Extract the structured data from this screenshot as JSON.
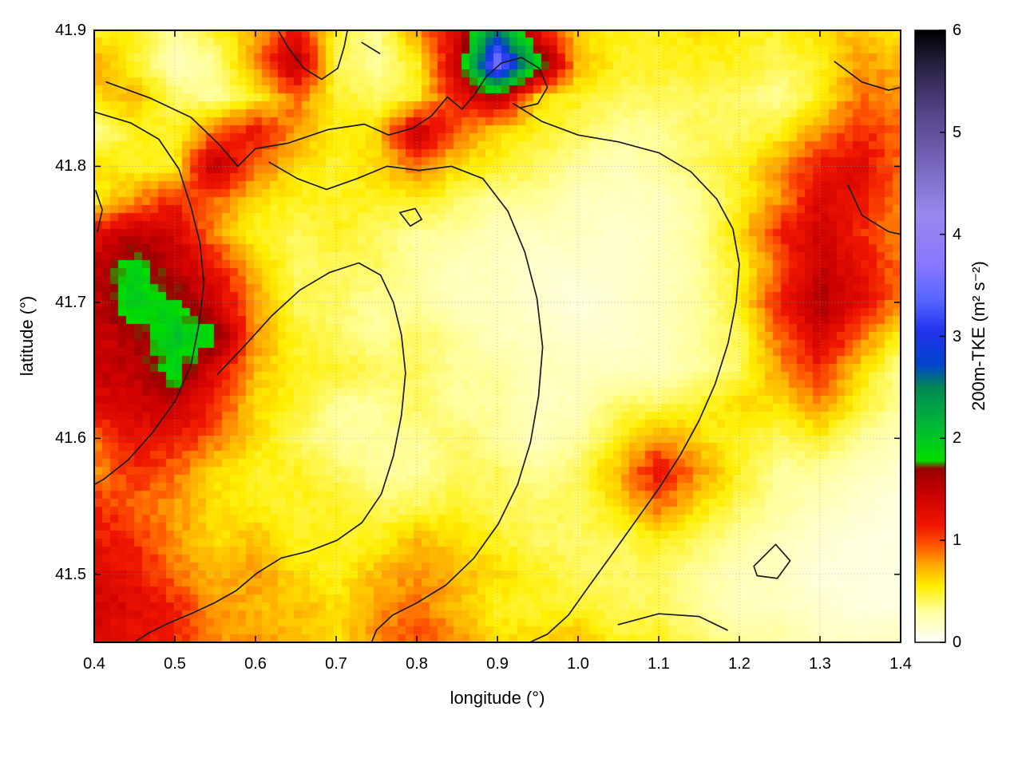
{
  "figure": {
    "background": "#ffffff"
  },
  "chart_data": {
    "type": "heatmap",
    "xlabel": "longitude (°)",
    "ylabel": "latitude (°)",
    "xlim": [
      0.4,
      1.4
    ],
    "ylim": [
      41.45,
      41.9
    ],
    "grid": true,
    "x_ticks": {
      "values": [
        0.4,
        0.5,
        0.6,
        0.7,
        0.8,
        0.9,
        1.0,
        1.1,
        1.2,
        1.3,
        1.4
      ],
      "labels": [
        "0.4",
        "0.5",
        "0.6",
        "0.7",
        "0.8",
        "0.9",
        "1.0",
        "1.1",
        "1.2",
        "1.3",
        "1.4"
      ]
    },
    "y_ticks": {
      "values": [
        41.5,
        41.6,
        41.7,
        41.8,
        41.9
      ],
      "labels": [
        "41.5",
        "41.6",
        "41.7",
        "41.8",
        "41.9"
      ]
    },
    "heatmap": {
      "lon_min": 0.4,
      "lon_max": 1.4,
      "lat_min": 41.45,
      "lat_max": 41.9,
      "ncols": 21,
      "nrows": 19,
      "row_order": "top-to-bottom",
      "col_order": "left-to-right",
      "values": [
        [
          0.5,
          0.5,
          0.3,
          0.5,
          0.7,
          1.2,
          0.5,
          0.3,
          0.8,
          1.3,
          2.5,
          1.2,
          0.6,
          0.5,
          0.5,
          0.6,
          0.5,
          0.5,
          0.6,
          0.7,
          0.5
        ],
        [
          0.8,
          0.5,
          0.2,
          0.3,
          0.8,
          1.6,
          0.4,
          0.3,
          0.5,
          1.4,
          3.6,
          2.0,
          0.7,
          0.5,
          0.5,
          0.5,
          0.5,
          0.4,
          0.5,
          0.8,
          0.7
        ],
        [
          0.6,
          0.7,
          0.4,
          0.3,
          0.5,
          0.9,
          0.5,
          0.4,
          0.5,
          1.2,
          1.5,
          0.6,
          0.5,
          0.4,
          0.4,
          0.4,
          0.4,
          0.3,
          0.5,
          0.9,
          0.8
        ],
        [
          0.3,
          0.5,
          0.5,
          0.9,
          1.2,
          0.8,
          0.5,
          0.6,
          1.5,
          0.9,
          0.6,
          0.5,
          0.4,
          0.3,
          0.3,
          0.4,
          0.4,
          0.5,
          0.8,
          1.1,
          0.9
        ],
        [
          0.6,
          0.5,
          0.5,
          1.6,
          0.9,
          0.6,
          0.5,
          0.6,
          0.9,
          0.6,
          0.5,
          0.4,
          0.3,
          0.2,
          0.3,
          0.4,
          0.5,
          0.8,
          1.2,
          1.3,
          0.9
        ],
        [
          0.5,
          0.8,
          1.1,
          0.9,
          0.6,
          0.5,
          0.5,
          0.5,
          0.5,
          0.4,
          0.3,
          0.3,
          0.2,
          0.2,
          0.2,
          0.3,
          0.5,
          0.8,
          1.3,
          1.2,
          0.8
        ],
        [
          1.3,
          1.5,
          1.4,
          0.8,
          0.5,
          0.4,
          0.5,
          0.4,
          0.3,
          0.3,
          0.2,
          0.2,
          0.2,
          0.15,
          0.2,
          0.3,
          0.6,
          1.1,
          1.4,
          1.1,
          0.8
        ],
        [
          1.5,
          1.9,
          1.5,
          1.2,
          0.7,
          0.4,
          0.4,
          0.4,
          0.3,
          0.2,
          0.2,
          0.15,
          0.15,
          0.15,
          0.2,
          0.3,
          0.5,
          0.9,
          1.5,
          1.2,
          0.9
        ],
        [
          1.5,
          2.0,
          1.8,
          1.4,
          0.8,
          0.4,
          0.4,
          0.3,
          0.3,
          0.2,
          0.2,
          0.15,
          0.1,
          0.15,
          0.2,
          0.3,
          0.5,
          1.1,
          1.6,
          1.3,
          0.8
        ],
        [
          1.4,
          1.6,
          2.0,
          1.8,
          0.8,
          0.5,
          0.4,
          0.3,
          0.4,
          0.3,
          0.2,
          0.2,
          0.15,
          0.15,
          0.2,
          0.3,
          0.4,
          0.9,
          1.4,
          0.9,
          0.5
        ],
        [
          1.5,
          1.5,
          1.9,
          1.3,
          0.7,
          0.5,
          0.5,
          0.4,
          0.4,
          0.3,
          0.3,
          0.2,
          0.2,
          0.2,
          0.2,
          0.3,
          0.4,
          0.8,
          1.1,
          0.6,
          0.3
        ],
        [
          1.3,
          1.4,
          1.5,
          1.1,
          0.6,
          0.5,
          0.3,
          0.3,
          0.4,
          0.3,
          0.3,
          0.2,
          0.2,
          0.4,
          0.4,
          0.5,
          0.6,
          0.6,
          0.8,
          0.5,
          0.3
        ],
        [
          0.9,
          1.2,
          1.2,
          0.9,
          0.6,
          0.4,
          0.3,
          0.3,
          0.3,
          0.4,
          0.3,
          0.2,
          0.3,
          0.5,
          0.8,
          0.6,
          0.5,
          0.4,
          0.5,
          0.3,
          0.2
        ],
        [
          0.8,
          1.1,
          0.9,
          0.6,
          0.5,
          0.5,
          0.4,
          0.3,
          0.3,
          0.4,
          0.4,
          0.3,
          0.4,
          0.7,
          1.2,
          0.8,
          0.5,
          0.3,
          0.3,
          0.2,
          0.15
        ],
        [
          1.1,
          0.9,
          0.8,
          0.6,
          0.5,
          0.5,
          0.5,
          0.4,
          0.4,
          0.5,
          0.4,
          0.4,
          0.4,
          0.6,
          0.9,
          0.6,
          0.4,
          0.3,
          0.2,
          0.15,
          0.1
        ],
        [
          1.2,
          1.1,
          0.8,
          0.6,
          0.7,
          0.5,
          0.5,
          0.5,
          0.7,
          0.6,
          0.5,
          0.4,
          0.4,
          0.4,
          0.5,
          0.4,
          0.3,
          0.2,
          0.15,
          0.1,
          0.1
        ],
        [
          1.3,
          1.2,
          0.9,
          0.7,
          0.8,
          0.6,
          0.5,
          0.7,
          0.8,
          0.7,
          0.6,
          0.5,
          0.4,
          0.4,
          0.4,
          0.3,
          0.2,
          0.2,
          0.1,
          0.1,
          0.1
        ],
        [
          1.4,
          1.3,
          1.1,
          0.8,
          0.7,
          0.7,
          0.6,
          0.8,
          0.9,
          0.7,
          0.5,
          0.5,
          0.5,
          0.4,
          0.4,
          0.3,
          0.2,
          0.2,
          0.15,
          0.1,
          0.1
        ],
        [
          1.3,
          1.2,
          1.1,
          0.8,
          0.8,
          0.7,
          0.6,
          0.8,
          1.0,
          0.8,
          0.6,
          0.6,
          0.7,
          0.5,
          0.5,
          0.4,
          0.3,
          0.3,
          0.2,
          0.2,
          0.2
        ]
      ]
    },
    "palette": {
      "stops": [
        [
          0.0,
          "#ffffff"
        ],
        [
          0.3,
          "#ffff9e"
        ],
        [
          0.55,
          "#ffee00"
        ],
        [
          0.75,
          "#ffaa00"
        ],
        [
          0.95,
          "#ff5500"
        ],
        [
          1.15,
          "#ee1500"
        ],
        [
          1.45,
          "#cc0000"
        ],
        [
          1.7,
          "#990000"
        ],
        [
          1.78,
          "#00dd00"
        ],
        [
          2.1,
          "#00bb33"
        ],
        [
          2.5,
          "#008855"
        ],
        [
          2.72,
          "#0044cc"
        ],
        [
          3.05,
          "#2233ee"
        ],
        [
          3.35,
          "#5566ff"
        ],
        [
          3.7,
          "#8877ff"
        ],
        [
          4.2,
          "#9988ee"
        ],
        [
          4.7,
          "#7766bb"
        ],
        [
          5.2,
          "#554488"
        ],
        [
          5.65,
          "#2a2244"
        ],
        [
          6.0,
          "#000000"
        ]
      ]
    },
    "contours": {
      "color": "#1c1c1c",
      "paths": [
        [
          [
            0.415,
            41.862
          ],
          [
            0.47,
            41.85
          ],
          [
            0.52,
            41.836
          ],
          [
            0.555,
            41.816
          ],
          [
            0.578,
            41.8
          ],
          [
            0.6,
            41.813
          ],
          [
            0.64,
            41.817
          ],
          [
            0.69,
            41.827
          ],
          [
            0.735,
            41.831
          ],
          [
            0.765,
            41.823
          ],
          [
            0.795,
            41.828
          ],
          [
            0.818,
            41.837
          ],
          [
            0.838,
            41.851
          ],
          [
            0.856,
            41.842
          ],
          [
            0.872,
            41.853
          ]
        ],
        [
          [
            0.4,
            41.84
          ],
          [
            0.445,
            41.832
          ],
          [
            0.48,
            41.82
          ],
          [
            0.505,
            41.798
          ],
          [
            0.52,
            41.77
          ],
          [
            0.531,
            41.744
          ],
          [
            0.536,
            41.714
          ],
          [
            0.53,
            41.684
          ],
          [
            0.52,
            41.654
          ],
          [
            0.5,
            41.627
          ],
          [
            0.472,
            41.604
          ],
          [
            0.442,
            41.584
          ],
          [
            0.412,
            41.57
          ],
          [
            0.4,
            41.566
          ]
        ],
        [
          [
            0.92,
            41.846
          ],
          [
            0.955,
            41.833
          ],
          [
            1.0,
            41.823
          ],
          [
            1.05,
            41.818
          ],
          [
            1.1,
            41.81
          ],
          [
            1.14,
            41.796
          ],
          [
            1.172,
            41.776
          ],
          [
            1.192,
            41.754
          ],
          [
            1.2,
            41.728
          ],
          [
            1.196,
            41.7
          ],
          [
            1.186,
            41.67
          ],
          [
            1.17,
            41.64
          ],
          [
            1.15,
            41.613
          ],
          [
            1.127,
            41.588
          ],
          [
            1.1,
            41.563
          ],
          [
            1.07,
            41.538
          ],
          [
            1.04,
            41.513
          ],
          [
            1.012,
            41.49
          ],
          [
            0.988,
            41.47
          ],
          [
            0.962,
            41.456
          ],
          [
            0.94,
            41.45
          ]
        ],
        [
          [
            0.553,
            41.647
          ],
          [
            0.588,
            41.669
          ],
          [
            0.62,
            41.69
          ],
          [
            0.655,
            41.709
          ],
          [
            0.692,
            41.722
          ],
          [
            0.728,
            41.729
          ],
          [
            0.755,
            41.72
          ],
          [
            0.771,
            41.7
          ],
          [
            0.781,
            41.676
          ],
          [
            0.786,
            41.648
          ],
          [
            0.781,
            41.617
          ],
          [
            0.771,
            41.587
          ],
          [
            0.756,
            41.559
          ],
          [
            0.732,
            41.538
          ],
          [
            0.701,
            41.525
          ],
          [
            0.666,
            41.517
          ],
          [
            0.632,
            41.512
          ],
          [
            0.602,
            41.501
          ],
          [
            0.576,
            41.488
          ],
          [
            0.549,
            41.479
          ],
          [
            0.52,
            41.471
          ],
          [
            0.492,
            41.464
          ],
          [
            0.468,
            41.457
          ],
          [
            0.452,
            41.451
          ]
        ],
        [
          [
            0.617,
            41.803
          ],
          [
            0.652,
            41.791
          ],
          [
            0.688,
            41.783
          ],
          [
            0.726,
            41.791
          ],
          [
            0.763,
            41.8
          ],
          [
            0.803,
            41.797
          ],
          [
            0.843,
            41.8
          ],
          [
            0.882,
            41.791
          ],
          [
            0.913,
            41.767
          ],
          [
            0.934,
            41.737
          ],
          [
            0.949,
            41.703
          ],
          [
            0.956,
            41.667
          ],
          [
            0.951,
            41.631
          ],
          [
            0.941,
            41.597
          ],
          [
            0.925,
            41.566
          ],
          [
            0.901,
            41.537
          ],
          [
            0.871,
            41.512
          ],
          [
            0.836,
            41.492
          ],
          [
            0.8,
            41.479
          ],
          [
            0.77,
            41.47
          ],
          [
            0.75,
            41.459
          ],
          [
            0.744,
            41.45
          ]
        ],
        [
          [
            0.779,
            41.766
          ],
          [
            0.798,
            41.769
          ],
          [
            0.806,
            41.761
          ],
          [
            0.792,
            41.756
          ],
          [
            0.779,
            41.766
          ]
        ],
        [
          [
            1.218,
            41.506
          ],
          [
            1.245,
            41.522
          ],
          [
            1.263,
            41.51
          ],
          [
            1.247,
            41.497
          ],
          [
            1.222,
            41.499
          ],
          [
            1.218,
            41.506
          ]
        ],
        [
          [
            1.05,
            41.463
          ],
          [
            1.1,
            41.471
          ],
          [
            1.15,
            41.469
          ],
          [
            1.185,
            41.459
          ]
        ],
        [
          [
            1.335,
            41.786
          ],
          [
            1.352,
            41.764
          ],
          [
            1.385,
            41.752
          ],
          [
            1.4,
            41.75
          ]
        ],
        [
          [
            1.318,
            41.877
          ],
          [
            1.352,
            41.862
          ],
          [
            1.385,
            41.856
          ],
          [
            1.4,
            41.858
          ]
        ],
        [
          [
            0.402,
            41.782
          ],
          [
            0.41,
            41.768
          ],
          [
            0.404,
            41.752
          ]
        ],
        [
          [
            0.732,
            41.891
          ],
          [
            0.754,
            41.883
          ]
        ],
        [
          [
            0.872,
            41.853
          ],
          [
            0.886,
            41.866
          ],
          [
            0.905,
            41.876
          ],
          [
            0.93,
            41.88
          ],
          [
            0.952,
            41.872
          ],
          [
            0.962,
            41.858
          ],
          [
            0.95,
            41.846
          ],
          [
            0.928,
            41.843
          ]
        ],
        [
          [
            0.628,
            41.9
          ],
          [
            0.642,
            41.886
          ],
          [
            0.66,
            41.872
          ],
          [
            0.682,
            41.864
          ],
          [
            0.702,
            41.872
          ],
          [
            0.71,
            41.888
          ],
          [
            0.714,
            41.9
          ]
        ]
      ]
    },
    "colorbar": {
      "label": "200m-TKE (m² s⁻²)",
      "min": 0,
      "max": 6,
      "ticks": {
        "values": [
          0,
          1,
          2,
          3,
          4,
          5,
          6
        ],
        "labels": [
          "0",
          "1",
          "2",
          "3",
          "4",
          "5",
          "6"
        ]
      }
    }
  }
}
